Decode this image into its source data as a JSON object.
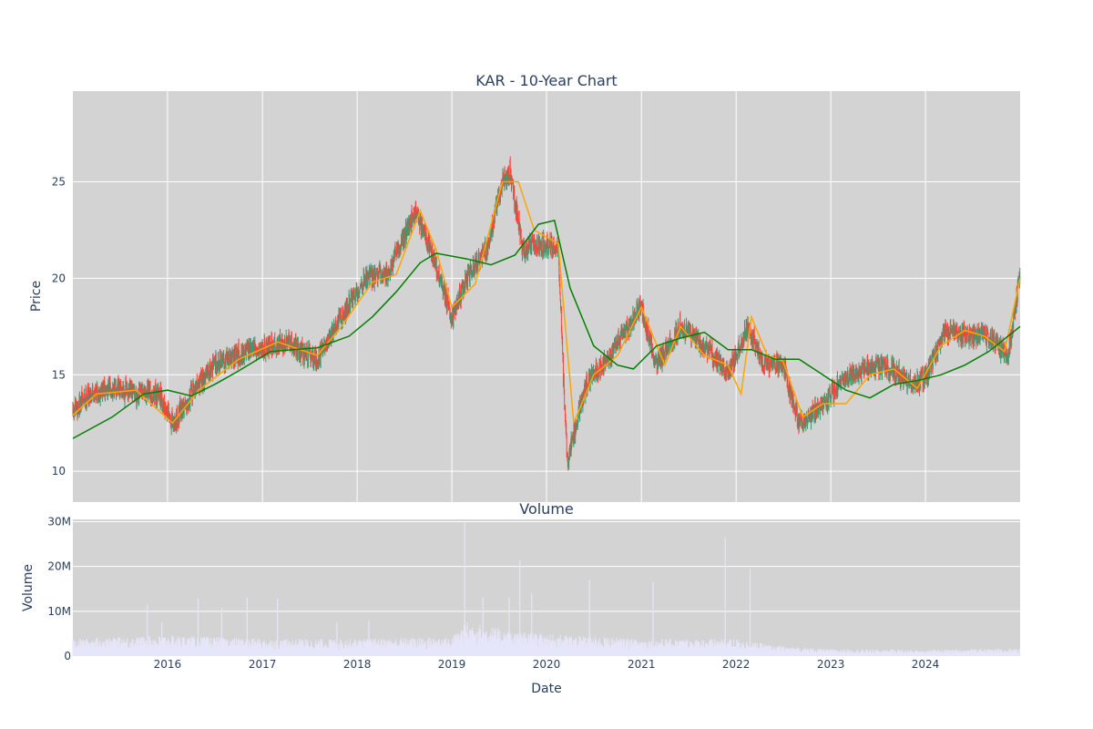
{
  "chart_data": [
    {
      "type": "candlestick",
      "title": "KAR - 10-Year Chart",
      "ylabel": "Price",
      "ylim": [
        8.4,
        29.7
      ],
      "xlim": [
        "2015-01-01",
        "2024-12-31"
      ],
      "y_ticks": [
        10,
        15,
        20,
        25
      ],
      "grid": true,
      "legend": "none",
      "colors": {
        "increasing": "#3d9970",
        "decreasing": "#ff4136",
        "ma_short": "#ffa500",
        "ma_long": "#008000",
        "background": "#d3d3d3",
        "grid": "#ffffff"
      },
      "price_path": {
        "dates": [
          "2015-01-01",
          "2015-03-01",
          "2015-06-01",
          "2015-09-01",
          "2015-12-01",
          "2016-01-20",
          "2016-04-01",
          "2016-07-01",
          "2016-10-01",
          "2017-01-15",
          "2017-04-15",
          "2017-08-01",
          "2017-11-01",
          "2018-02-01",
          "2018-05-01",
          "2018-08-15",
          "2018-10-10",
          "2019-01-01",
          "2019-03-01",
          "2019-05-15",
          "2019-07-15",
          "2019-08-15",
          "2019-10-01",
          "2019-12-01",
          "2020-02-15",
          "2020-03-20",
          "2020-06-01",
          "2020-09-01",
          "2021-01-01",
          "2021-03-01",
          "2021-06-01",
          "2021-09-01",
          "2021-12-01",
          "2022-02-15",
          "2022-04-15",
          "2022-07-01",
          "2022-09-01",
          "2022-12-01",
          "2023-02-01",
          "2023-05-01",
          "2023-08-01",
          "2023-11-01",
          "2024-01-01",
          "2024-03-15",
          "2024-06-01",
          "2024-09-01",
          "2024-11-15",
          "2024-12-31"
        ],
        "close": [
          13.0,
          14.0,
          14.3,
          14.0,
          14.0,
          12.4,
          14.0,
          15.6,
          16.0,
          16.5,
          16.6,
          15.8,
          18.0,
          20.0,
          20.3,
          23.5,
          21.5,
          18.0,
          20.0,
          21.5,
          25.0,
          25.5,
          21.5,
          21.8,
          21.5,
          10.5,
          14.5,
          16.0,
          18.5,
          15.5,
          17.5,
          16.5,
          15.0,
          17.5,
          15.5,
          15.5,
          12.5,
          13.5,
          14.5,
          15.3,
          15.5,
          14.5,
          14.8,
          17.3,
          17.0,
          17.0,
          16.0,
          20.3
        ]
      },
      "moving_average_short": {
        "dates": [
          "2015-01-01",
          "2015-04-01",
          "2015-09-01",
          "2016-01-20",
          "2016-05-01",
          "2016-10-01",
          "2017-03-01",
          "2017-08-01",
          "2017-11-01",
          "2018-03-01",
          "2018-06-01",
          "2018-09-01",
          "2018-11-01",
          "2019-01-01",
          "2019-04-01",
          "2019-07-15",
          "2019-09-15",
          "2019-11-15",
          "2020-02-15",
          "2020-04-15",
          "2020-07-01",
          "2020-10-01",
          "2021-01-01",
          "2021-04-01",
          "2021-06-01",
          "2021-09-01",
          "2021-12-01",
          "2022-01-20",
          "2022-03-01",
          "2022-05-01",
          "2022-07-01",
          "2022-09-15",
          "2022-12-01",
          "2023-03-01",
          "2023-06-01",
          "2023-09-01",
          "2023-12-01",
          "2024-03-01",
          "2024-06-01",
          "2024-08-15",
          "2024-11-01",
          "2024-12-31"
        ],
        "values": [
          12.9,
          14.0,
          14.2,
          12.5,
          14.2,
          15.8,
          16.7,
          16.0,
          17.5,
          19.8,
          20.2,
          23.5,
          21.5,
          18.5,
          19.7,
          25.0,
          25.0,
          22.5,
          21.8,
          12.5,
          15.0,
          16.0,
          18.5,
          15.5,
          17.5,
          16.0,
          15.5,
          14.0,
          18.0,
          16.0,
          15.7,
          12.8,
          13.5,
          13.5,
          15.0,
          15.3,
          14.3,
          16.5,
          17.3,
          17.0,
          16.2,
          20.0
        ]
      },
      "moving_average_long": {
        "dates": [
          "2015-01-01",
          "2015-06-01",
          "2015-10-01",
          "2016-01-01",
          "2016-04-01",
          "2016-07-01",
          "2016-10-01",
          "2017-02-01",
          "2017-08-01",
          "2017-12-01",
          "2018-03-01",
          "2018-06-01",
          "2018-09-01",
          "2018-11-01",
          "2019-03-01",
          "2019-06-01",
          "2019-09-01",
          "2019-12-01",
          "2020-02-01",
          "2020-04-01",
          "2020-07-01",
          "2020-10-01",
          "2020-12-01",
          "2021-03-01",
          "2021-06-01",
          "2021-09-01",
          "2021-12-01",
          "2022-03-01",
          "2022-06-01",
          "2022-09-01",
          "2022-12-01",
          "2023-03-01",
          "2023-06-01",
          "2023-09-01",
          "2023-12-01",
          "2024-03-01",
          "2024-06-01",
          "2024-09-01",
          "2024-12-31"
        ],
        "values": [
          11.7,
          12.8,
          14.0,
          14.2,
          13.9,
          14.5,
          15.2,
          16.2,
          16.4,
          17.0,
          18.0,
          19.3,
          20.8,
          21.3,
          21.0,
          20.7,
          21.2,
          22.8,
          23.0,
          19.5,
          16.5,
          15.5,
          15.3,
          16.5,
          16.9,
          17.2,
          16.3,
          16.3,
          15.8,
          15.8,
          15.0,
          14.2,
          13.8,
          14.5,
          14.7,
          15.0,
          15.5,
          16.2,
          17.5
        ]
      }
    },
    {
      "type": "bar",
      "title": "Volume",
      "ylabel": "Volume",
      "xlabel": "Date",
      "ylim": [
        0,
        30500000
      ],
      "y_ticks": [
        {
          "value": 0,
          "label": "0"
        },
        {
          "value": 10000000,
          "label": "10M"
        },
        {
          "value": 20000000,
          "label": "20M"
        },
        {
          "value": 30000000,
          "label": "30M"
        }
      ],
      "x_ticks": [
        "2016",
        "2017",
        "2018",
        "2019",
        "2020",
        "2021",
        "2022",
        "2023",
        "2024"
      ],
      "grid": true,
      "colors": {
        "bars": "#e6e6fa",
        "background": "#d3d3d3",
        "grid": "#ffffff"
      },
      "baseline_volume": {
        "dates": [
          "2015-01-01",
          "2016-01-01",
          "2017-01-01",
          "2018-01-01",
          "2019-01-01",
          "2019-03-01",
          "2019-09-01",
          "2020-04-01",
          "2021-01-01",
          "2022-01-01",
          "2022-06-01",
          "2023-01-01",
          "2024-01-01",
          "2024-12-31"
        ],
        "values": [
          2500000,
          3000000,
          2500000,
          2500000,
          2800000,
          5000000,
          3500000,
          3000000,
          2500000,
          2500000,
          1500000,
          1000000,
          900000,
          1100000
        ]
      },
      "volume_spikes": [
        {
          "date": "2015-10-15",
          "value": 11500000
        },
        {
          "date": "2015-12-10",
          "value": 7500000
        },
        {
          "date": "2016-04-28",
          "value": 12800000
        },
        {
          "date": "2016-07-28",
          "value": 10800000
        },
        {
          "date": "2016-11-03",
          "value": 13000000
        },
        {
          "date": "2017-02-28",
          "value": 12800000
        },
        {
          "date": "2017-10-15",
          "value": 7500000
        },
        {
          "date": "2018-02-15",
          "value": 8000000
        },
        {
          "date": "2019-02-20",
          "value": 30000000
        },
        {
          "date": "2019-05-01",
          "value": 13000000
        },
        {
          "date": "2019-08-10",
          "value": 13000000
        },
        {
          "date": "2019-09-20",
          "value": 21500000
        },
        {
          "date": "2019-11-05",
          "value": 14000000
        },
        {
          "date": "2020-06-15",
          "value": 17000000
        },
        {
          "date": "2021-02-15",
          "value": 16500000
        },
        {
          "date": "2021-11-20",
          "value": 26500000
        },
        {
          "date": "2022-02-24",
          "value": 19500000
        }
      ]
    }
  ]
}
